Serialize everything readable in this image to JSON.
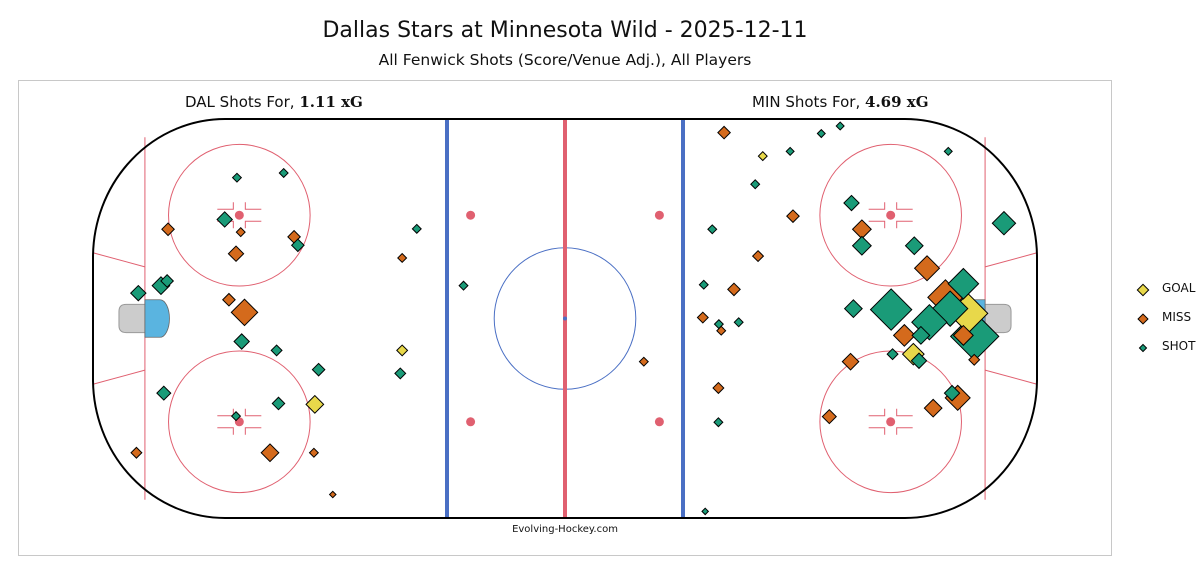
{
  "title": "Dallas Stars at Minnesota Wild - 2025-12-11",
  "subtitle": "All Fenwick Shots (Score/Venue Adj.), All Players",
  "left_label": {
    "prefix": "DAL Shots For,",
    "xg": "1.11 xG"
  },
  "right_label": {
    "prefix": "MIN Shots For,",
    "xg": "4.69 xG"
  },
  "credit": "Evolving-Hockey.com",
  "colors": {
    "goal": "#e8d84a",
    "miss": "#d46a1c",
    "shot": "#1a9b78",
    "board": "#000000",
    "red_line": "#e06070",
    "blue_line": "#4a6fc4",
    "faceoff": "#e06070",
    "center_circle": "#4a6fc4",
    "crease": "#5ab4e0",
    "net": "#cccccc"
  },
  "legend": [
    {
      "label": "GOAL",
      "type": "goal"
    },
    {
      "label": "MISS",
      "type": "miss"
    },
    {
      "label": "SHOT",
      "type": "shot"
    }
  ],
  "chart_data": {
    "type": "scatter",
    "x_unit": "ft (center ice = 0, DAL attacks left, MIN attacks right)",
    "y_unit": "ft (center = 0)",
    "xlim": [
      -100,
      100
    ],
    "ylim": [
      -42.5,
      42.5
    ],
    "series": [
      {
        "name": "DAL",
        "points": [
          {
            "x": -69.5,
            "y": 30.0,
            "type": "shot",
            "xg": 0.01
          },
          {
            "x": -59.6,
            "y": 31.0,
            "type": "shot",
            "xg": 0.01
          },
          {
            "x": -84.1,
            "y": 19.0,
            "type": "miss",
            "xg": 0.02
          },
          {
            "x": -72.1,
            "y": 21.1,
            "type": "shot",
            "xg": 0.03
          },
          {
            "x": -68.7,
            "y": 18.4,
            "type": "miss",
            "xg": 0.01
          },
          {
            "x": -57.4,
            "y": 17.4,
            "type": "miss",
            "xg": 0.02
          },
          {
            "x": -56.6,
            "y": 15.6,
            "type": "shot",
            "xg": 0.02
          },
          {
            "x": -69.7,
            "y": 13.8,
            "type": "miss",
            "xg": 0.03
          },
          {
            "x": -84.3,
            "y": 8.0,
            "type": "shot",
            "xg": 0.02
          },
          {
            "x": -85.6,
            "y": 7.0,
            "type": "shot",
            "xg": 0.04
          },
          {
            "x": -90.4,
            "y": 5.4,
            "type": "shot",
            "xg": 0.03
          },
          {
            "x": -71.2,
            "y": 4.0,
            "type": "miss",
            "xg": 0.02
          },
          {
            "x": -67.9,
            "y": 1.3,
            "type": "miss",
            "xg": 0.09
          },
          {
            "x": -68.5,
            "y": -4.9,
            "type": "shot",
            "xg": 0.03
          },
          {
            "x": -61.1,
            "y": -6.8,
            "type": "shot",
            "xg": 0.015
          },
          {
            "x": -52.2,
            "y": -10.9,
            "type": "shot",
            "xg": 0.02
          },
          {
            "x": -85.0,
            "y": -15.9,
            "type": "shot",
            "xg": 0.025
          },
          {
            "x": -60.7,
            "y": -18.1,
            "type": "shot",
            "xg": 0.02
          },
          {
            "x": -53.0,
            "y": -18.3,
            "type": "goal",
            "xg": 0.04
          },
          {
            "x": -69.7,
            "y": -20.8,
            "type": "shot",
            "xg": 0.01
          },
          {
            "x": -62.5,
            "y": -28.6,
            "type": "miss",
            "xg": 0.04
          },
          {
            "x": -53.2,
            "y": -28.6,
            "type": "miss",
            "xg": 0.01
          },
          {
            "x": -90.8,
            "y": -28.6,
            "type": "miss",
            "xg": 0.015
          },
          {
            "x": -49.2,
            "y": -37.5,
            "type": "miss",
            "xg": 0.005
          },
          {
            "x": -31.4,
            "y": 19.1,
            "type": "shot",
            "xg": 0.01
          },
          {
            "x": -34.5,
            "y": 12.9,
            "type": "miss",
            "xg": 0.01
          },
          {
            "x": -21.5,
            "y": 7.0,
            "type": "shot",
            "xg": 0.01
          },
          {
            "x": -34.5,
            "y": -6.8,
            "type": "goal",
            "xg": 0.015
          },
          {
            "x": -34.9,
            "y": -11.7,
            "type": "shot",
            "xg": 0.015
          }
        ]
      },
      {
        "name": "MIN",
        "points": [
          {
            "x": 33.7,
            "y": 39.6,
            "type": "miss",
            "xg": 0.02
          },
          {
            "x": 54.3,
            "y": 39.4,
            "type": "shot",
            "xg": 0.008
          },
          {
            "x": 58.3,
            "y": 41.0,
            "type": "shot",
            "xg": 0.008
          },
          {
            "x": 41.9,
            "y": 34.6,
            "type": "goal",
            "xg": 0.01
          },
          {
            "x": 47.7,
            "y": 35.6,
            "type": "shot",
            "xg": 0.008
          },
          {
            "x": 81.2,
            "y": 35.6,
            "type": "shot",
            "xg": 0.008
          },
          {
            "x": 40.3,
            "y": 28.6,
            "type": "shot",
            "xg": 0.01
          },
          {
            "x": 60.7,
            "y": 24.6,
            "type": "shot",
            "xg": 0.03
          },
          {
            "x": 48.3,
            "y": 21.8,
            "type": "miss",
            "xg": 0.02
          },
          {
            "x": 31.2,
            "y": 19.0,
            "type": "shot",
            "xg": 0.01
          },
          {
            "x": 62.9,
            "y": 19.0,
            "type": "miss",
            "xg": 0.045
          },
          {
            "x": 62.9,
            "y": 15.5,
            "type": "shot",
            "xg": 0.045
          },
          {
            "x": 74.0,
            "y": 15.5,
            "type": "shot",
            "xg": 0.04
          },
          {
            "x": 40.9,
            "y": 13.3,
            "type": "miss",
            "xg": 0.015
          },
          {
            "x": 76.7,
            "y": 10.7,
            "type": "miss",
            "xg": 0.08
          },
          {
            "x": 93.0,
            "y": 20.3,
            "type": "shot",
            "xg": 0.07
          },
          {
            "x": 29.4,
            "y": 7.2,
            "type": "shot",
            "xg": 0.01
          },
          {
            "x": 35.8,
            "y": 6.2,
            "type": "miss",
            "xg": 0.02
          },
          {
            "x": 84.4,
            "y": 7.4,
            "type": "shot",
            "xg": 0.12
          },
          {
            "x": 80.6,
            "y": 4.5,
            "type": "miss",
            "xg": 0.16
          },
          {
            "x": 61.1,
            "y": 2.1,
            "type": "shot",
            "xg": 0.04
          },
          {
            "x": 69.1,
            "y": 1.9,
            "type": "shot",
            "xg": 0.22
          },
          {
            "x": 81.6,
            "y": 2.1,
            "type": "shot",
            "xg": 0.16
          },
          {
            "x": 85.4,
            "y": 1.1,
            "type": "goal",
            "xg": 0.2
          },
          {
            "x": 29.2,
            "y": 0.2,
            "type": "miss",
            "xg": 0.015
          },
          {
            "x": 32.6,
            "y": -1.2,
            "type": "shot",
            "xg": 0.01
          },
          {
            "x": 36.8,
            "y": -0.8,
            "type": "shot",
            "xg": 0.01
          },
          {
            "x": 33.1,
            "y": -2.6,
            "type": "miss",
            "xg": 0.01
          },
          {
            "x": 77.2,
            "y": -0.8,
            "type": "shot",
            "xg": 0.16
          },
          {
            "x": 71.9,
            "y": -3.6,
            "type": "miss",
            "xg": 0.06
          },
          {
            "x": 75.4,
            "y": -3.6,
            "type": "shot",
            "xg": 0.04
          },
          {
            "x": 84.4,
            "y": -3.6,
            "type": "miss",
            "xg": 0.05
          },
          {
            "x": 86.8,
            "y": -3.8,
            "type": "shot",
            "xg": 0.3
          },
          {
            "x": 69.4,
            "y": -7.6,
            "type": "shot",
            "xg": 0.015
          },
          {
            "x": 73.8,
            "y": -7.6,
            "type": "goal",
            "xg": 0.06
          },
          {
            "x": 75.0,
            "y": -9.0,
            "type": "shot",
            "xg": 0.03
          },
          {
            "x": 86.7,
            "y": -8.8,
            "type": "miss",
            "xg": 0.015
          },
          {
            "x": 60.5,
            "y": -9.2,
            "type": "miss",
            "xg": 0.035
          },
          {
            "x": 16.7,
            "y": -9.2,
            "type": "miss",
            "xg": 0.01
          },
          {
            "x": 32.5,
            "y": -14.8,
            "type": "miss",
            "xg": 0.015
          },
          {
            "x": 82.0,
            "y": -15.9,
            "type": "shot",
            "xg": 0.03
          },
          {
            "x": 83.2,
            "y": -16.9,
            "type": "miss",
            "xg": 0.08
          },
          {
            "x": 78.0,
            "y": -19.1,
            "type": "miss",
            "xg": 0.04
          },
          {
            "x": 56.0,
            "y": -20.9,
            "type": "miss",
            "xg": 0.025
          },
          {
            "x": 32.5,
            "y": -22.1,
            "type": "shot",
            "xg": 0.01
          },
          {
            "x": 29.7,
            "y": -41.1,
            "type": "shot",
            "xg": 0.004
          }
        ]
      }
    ]
  }
}
